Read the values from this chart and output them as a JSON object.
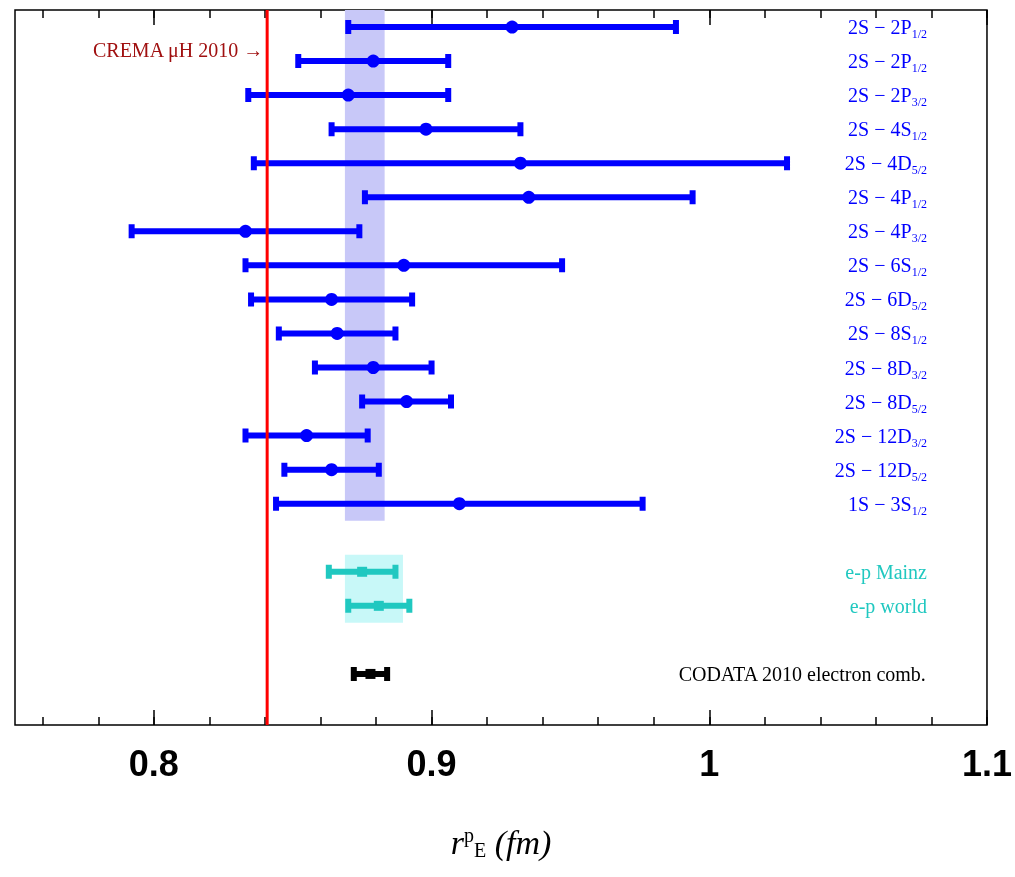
{
  "chart_data": {
    "type": "scatter",
    "orientation": "horizontal",
    "xlabel": "r$^{p}$$_{E}$ (fm)",
    "categories": [
      "2S − 2P$_{1/2}$",
      "2S − 2P$_{1/2}$",
      "2S − 2P$_{3/2}$",
      "2S − 4S$_{1/2}$",
      "2S − 4D$_{5/2}$",
      "2S − 4P$_{1/2}$",
      "2S − 4P$_{3/2}$",
      "2S − 6S$_{1/2}$",
      "2S − 6D$_{5/2}$",
      "2S − 8S$_{1/2}$",
      "2S − 8D$_{3/2}$",
      "2S − 8D$_{5/2}$",
      "2S − 12D$_{3/2}$",
      "2S − 12D$_{5/2}$",
      "1S − 3S$_{1/2}$",
      null,
      "e-p Mainz",
      "e-p world",
      null,
      "CODATA 2010 electron comb.",
      null
    ],
    "series": [
      {
        "color": "#0000ff",
        "marker": "circle",
        "values": [
          0.929,
          0.879,
          0.87,
          0.898,
          0.932,
          0.935,
          0.833,
          0.89,
          0.864,
          0.866,
          0.879,
          0.891,
          0.855,
          0.864,
          0.91,
          null,
          null,
          null,
          null,
          null,
          null
        ],
        "errors": [
          0.059,
          0.027,
          0.036,
          0.034,
          0.096,
          0.059,
          0.041,
          0.057,
          0.029,
          0.021,
          0.021,
          0.016,
          0.022,
          0.017,
          0.066,
          null,
          null,
          null,
          null,
          null,
          null
        ]
      },
      {
        "color": "#20c8c0",
        "marker": "square",
        "values": [
          null,
          null,
          null,
          null,
          null,
          null,
          null,
          null,
          null,
          null,
          null,
          null,
          null,
          null,
          null,
          null,
          0.875,
          0.881,
          null,
          null,
          null
        ],
        "errors": [
          null,
          null,
          null,
          null,
          null,
          null,
          null,
          null,
          null,
          null,
          null,
          null,
          null,
          null,
          null,
          null,
          0.012,
          0.011,
          null,
          null,
          null
        ]
      },
      {
        "color": "#000000",
        "marker": "square",
        "values": [
          null,
          null,
          null,
          null,
          null,
          null,
          null,
          null,
          null,
          null,
          null,
          null,
          null,
          null,
          null,
          null,
          null,
          null,
          null,
          0.878,
          null
        ],
        "errors": [
          null,
          null,
          null,
          null,
          null,
          null,
          null,
          null,
          null,
          null,
          null,
          null,
          null,
          null,
          null,
          null,
          null,
          null,
          null,
          0.006,
          null
        ]
      }
    ],
    "xlim": [
      0.75,
      1.1
    ],
    "xticks": [
      {
        "value": 0.76,
        "label": null
      },
      {
        "value": 0.78,
        "label": null
      },
      0.8,
      {
        "value": 0.82,
        "label": null
      },
      {
        "value": 0.84,
        "label": null
      },
      {
        "value": 0.86,
        "label": null
      },
      {
        "value": 0.88,
        "label": null
      },
      0.9,
      {
        "value": 0.92,
        "label": null
      },
      {
        "value": 0.94,
        "label": null
      },
      {
        "value": 0.96,
        "label": null
      },
      {
        "value": 0.98,
        "label": null
      },
      1,
      {
        "value": 1.02,
        "label": null
      },
      {
        "value": 1.04,
        "label": null
      },
      {
        "value": 1.06,
        "label": null
      },
      {
        "value": 1.08,
        "label": null
      },
      1.1
    ],
    "ref_lines": [
      {
        "axis": "x",
        "value": 0.8408,
        "label": "CREMA μH 2010 →",
        "color": "#ff0000"
      }
    ],
    "bands": [
      {
        "axis": "x",
        "from": 0.8688,
        "to": 0.8831,
        "color": "#c8c8f8"
      },
      {
        "axis": "x",
        "from": 0.8688,
        "to": 0.8897,
        "color": "#c8f8f8"
      }
    ]
  }
}
